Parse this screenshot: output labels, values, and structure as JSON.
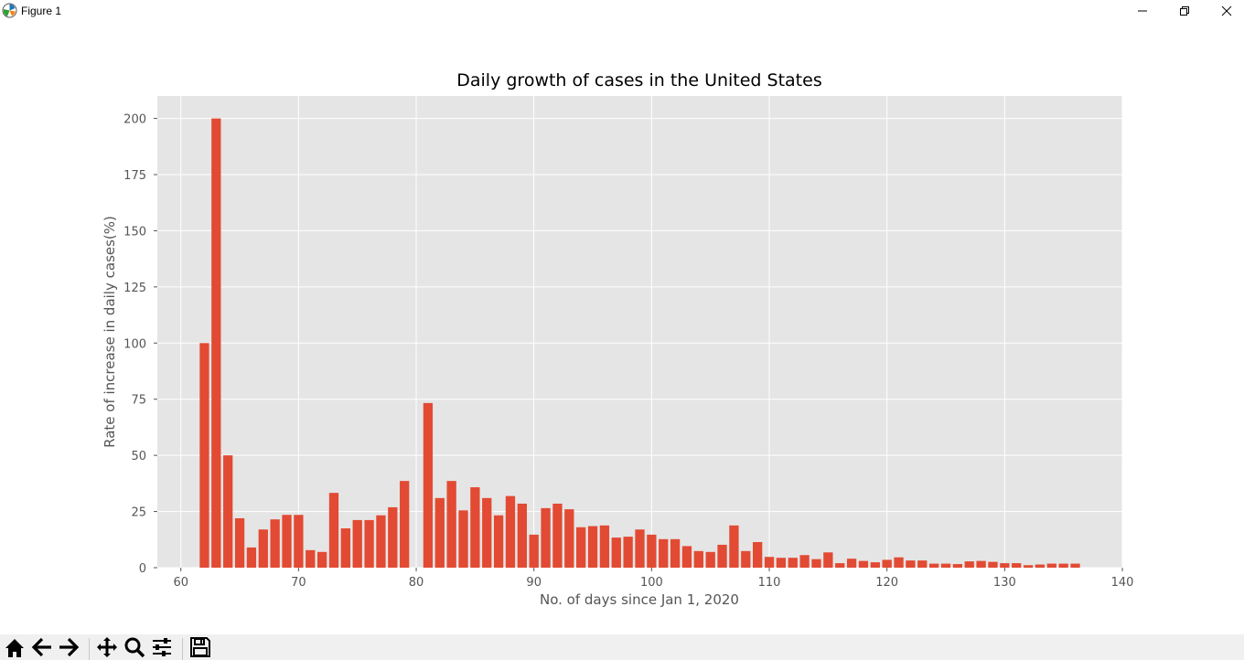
{
  "window": {
    "title": "Figure 1",
    "icon": "matplotlib-icon",
    "controls": [
      "minimize-icon",
      "restore-icon",
      "close-icon"
    ]
  },
  "toolbar": {
    "buttons": [
      "home-icon",
      "back-arrow-icon",
      "forward-arrow-icon",
      "pan-icon",
      "zoom-icon",
      "subplots-config-icon",
      "save-icon"
    ]
  },
  "colors": {
    "bar": "#e24a33",
    "axes_background": "#e5e5e5",
    "grid": "#ffffff",
    "text": "#555555"
  },
  "chart_data": {
    "type": "bar",
    "title": "Daily growth of cases in the United States",
    "xlabel": "No. of days since Jan 1, 2020",
    "ylabel": "Rate of increase in daily cases(%)",
    "xlim": [
      58,
      140
    ],
    "ylim": [
      0,
      210
    ],
    "xticks": [
      60,
      70,
      80,
      90,
      100,
      110,
      120,
      130,
      140
    ],
    "yticks": [
      0,
      25,
      50,
      75,
      100,
      125,
      150,
      175,
      200
    ],
    "grid": true,
    "legend": "none",
    "x": [
      62,
      63,
      64,
      65,
      66,
      67,
      68,
      69,
      70,
      71,
      72,
      73,
      74,
      75,
      76,
      77,
      78,
      79,
      81,
      82,
      83,
      84,
      85,
      86,
      87,
      88,
      89,
      90,
      91,
      92,
      93,
      94,
      95,
      96,
      97,
      98,
      99,
      100,
      101,
      102,
      103,
      104,
      105,
      106,
      107,
      108,
      109,
      110,
      111,
      112,
      113,
      114,
      115,
      116,
      117,
      118,
      119,
      120,
      121,
      122,
      123,
      124,
      125,
      126,
      127,
      128,
      129,
      130,
      131,
      132,
      133,
      134,
      135,
      136
    ],
    "values": [
      100,
      200,
      50,
      22,
      9,
      17,
      21.5,
      23.5,
      23.5,
      7.8,
      7,
      33.3,
      17.5,
      21.2,
      21.2,
      23.3,
      26.9,
      38.6,
      73.3,
      31,
      38.6,
      25.5,
      35.8,
      31,
      23.3,
      31.9,
      28.5,
      14.7,
      26.5,
      28.5,
      26,
      18,
      18.5,
      18.8,
      13.4,
      13.8,
      17,
      14.7,
      12.7,
      12.7,
      9.6,
      7.4,
      7,
      10.2,
      18.8,
      7.4,
      11.4,
      4.8,
      4.4,
      4.4,
      5.6,
      3.8,
      6.8,
      2,
      4,
      3,
      2.4,
      3.5,
      4.6,
      3.2,
      3.2,
      1.8,
      1.8,
      1.6,
      2.8,
      3,
      2.6,
      2,
      2,
      1.1,
      1.4,
      1.8,
      1.8,
      1.8
    ]
  }
}
